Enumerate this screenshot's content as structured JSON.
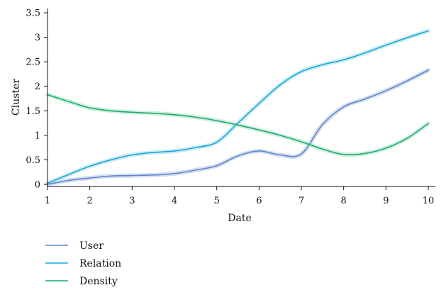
{
  "chart_data": {
    "type": "line",
    "xlabel": "Date",
    "ylabel": "Cluster",
    "xlim": [
      1,
      10
    ],
    "ylim": [
      0,
      3.5
    ],
    "x_ticks": [
      1,
      2,
      3,
      4,
      5,
      6,
      7,
      8,
      9,
      10
    ],
    "y_ticks": [
      0,
      0.5,
      1,
      1.5,
      2,
      2.5,
      3,
      3.5
    ],
    "y_tick_labels": [
      "0",
      "0.5",
      "1",
      "1.5",
      "2",
      "2.5",
      "3",
      "3.5"
    ],
    "grid": false,
    "legend_position": "bottom-left",
    "series": [
      {
        "name": "User",
        "color": "#5b86c8",
        "band_color": "#c9d6f0",
        "x": [
          1,
          1.5,
          2,
          2.5,
          3,
          3.5,
          4,
          4.5,
          5,
          5.5,
          6,
          6.5,
          7,
          7.5,
          8,
          8.5,
          9,
          9.5,
          10
        ],
        "y": [
          0.0,
          0.08,
          0.13,
          0.17,
          0.18,
          0.19,
          0.22,
          0.29,
          0.38,
          0.58,
          0.68,
          0.6,
          0.62,
          1.22,
          1.58,
          1.74,
          1.91,
          2.11,
          2.33
        ]
      },
      {
        "name": "Relation",
        "color": "#1ba8d8",
        "band_color": "#bfe6f4",
        "x": [
          1,
          1.5,
          2,
          2.5,
          3,
          3.5,
          4,
          4.5,
          5,
          5.5,
          6,
          6.5,
          7,
          7.5,
          8,
          8.5,
          9,
          9.5,
          10
        ],
        "y": [
          0.02,
          0.2,
          0.37,
          0.5,
          0.6,
          0.65,
          0.68,
          0.75,
          0.86,
          1.25,
          1.65,
          2.03,
          2.3,
          2.44,
          2.54,
          2.68,
          2.84,
          2.99,
          3.13
        ]
      },
      {
        "name": "Density",
        "color": "#1faa6e",
        "band_color": "#c2ead7",
        "x": [
          1,
          1.5,
          2,
          2.5,
          3,
          3.5,
          4,
          4.5,
          5,
          5.5,
          6,
          6.5,
          7,
          7.5,
          8,
          8.5,
          9,
          9.5,
          10
        ],
        "y": [
          1.83,
          1.69,
          1.56,
          1.5,
          1.47,
          1.45,
          1.42,
          1.37,
          1.3,
          1.21,
          1.11,
          1.0,
          0.87,
          0.72,
          0.61,
          0.63,
          0.74,
          0.94,
          1.24
        ]
      }
    ]
  }
}
